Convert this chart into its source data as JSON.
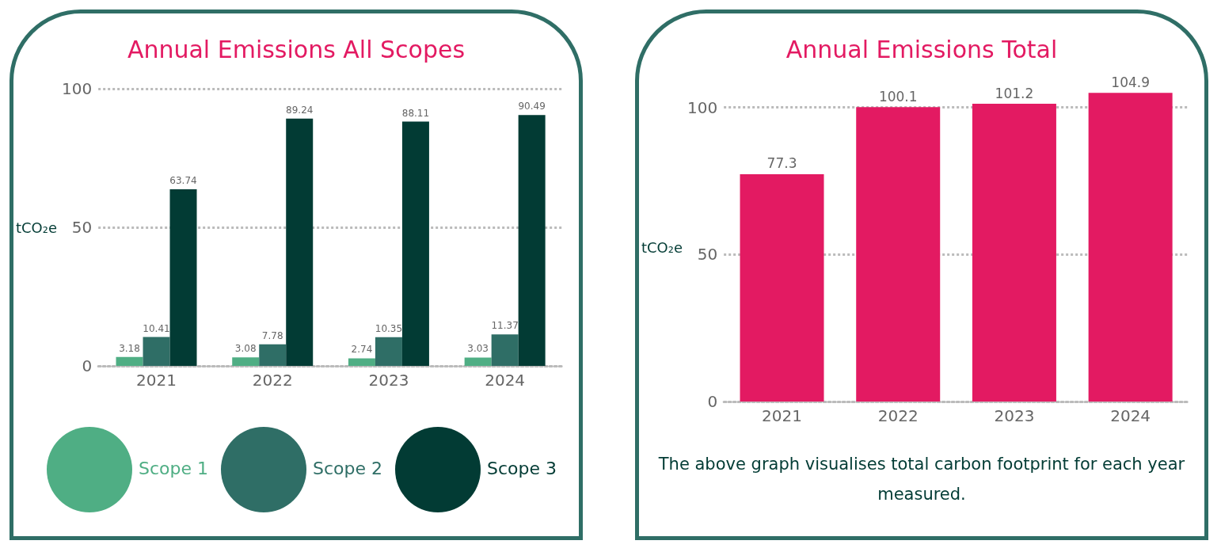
{
  "chart_data": [
    {
      "type": "bar",
      "title": "Annual Emissions All Scopes",
      "ylabel": "tCO₂e",
      "categories": [
        "2021",
        "2022",
        "2023",
        "2024"
      ],
      "series": [
        {
          "name": "Scope 1",
          "color": "#4fae84",
          "values": [
            3.18,
            3.08,
            2.74,
            3.03
          ]
        },
        {
          "name": "Scope 2",
          "color": "#2f6e66",
          "values": [
            10.41,
            7.78,
            10.35,
            11.37
          ]
        },
        {
          "name": "Scope 3",
          "color": "#023b34",
          "values": [
            63.74,
            89.24,
            88.11,
            90.49
          ]
        }
      ],
      "ylim": [
        0,
        100
      ],
      "yticks": [
        0,
        50,
        100
      ],
      "grid": "y",
      "legend": "bottom",
      "data_labels": true
    },
    {
      "type": "bar",
      "title": "Annual Emissions Total",
      "ylabel": "tCO₂e",
      "categories": [
        "2021",
        "2022",
        "2023",
        "2024"
      ],
      "values": [
        77.3,
        100.1,
        101.2,
        104.9
      ],
      "color": "#e31a62",
      "ylim": [
        0,
        105
      ],
      "yticks": [
        0,
        50,
        100
      ],
      "grid": "y",
      "legend": false,
      "data_labels": true,
      "annotations": [
        "The above graph visualises total carbon footprint for each year measured."
      ]
    }
  ]
}
